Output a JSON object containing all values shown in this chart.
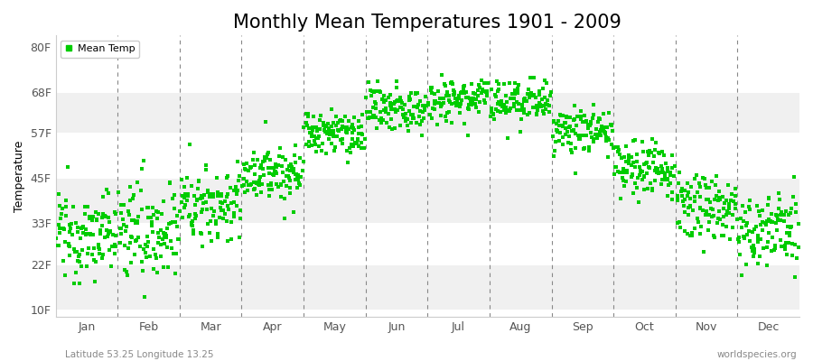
{
  "title": "Monthly Mean Temperatures 1901 - 2009",
  "ylabel": "Temperature",
  "xlabel_labels": [
    "Jan",
    "Feb",
    "Mar",
    "Apr",
    "May",
    "Jun",
    "Jul",
    "Aug",
    "Sep",
    "Oct",
    "Nov",
    "Dec"
  ],
  "ytick_labels": [
    "10F",
    "22F",
    "33F",
    "45F",
    "57F",
    "68F",
    "80F"
  ],
  "ytick_values": [
    10,
    22,
    33,
    45,
    57,
    68,
    80
  ],
  "ylim": [
    8,
    83
  ],
  "dot_color": "#00cc00",
  "dot_size": 5,
  "background_color": "#ffffff",
  "stripe_colors": [
    "#f0f0f0",
    "#ffffff"
  ],
  "grid_color": "#888888",
  "title_fontsize": 15,
  "legend_label": "Mean Temp",
  "footer_left": "Latitude 53.25 Longitude 13.25",
  "footer_right": "worldspecies.org",
  "n_years": 109,
  "month_mean_temps_F": [
    30.0,
    31.0,
    38.0,
    46.5,
    57.0,
    63.5,
    66.5,
    65.0,
    57.5,
    47.5,
    37.5,
    31.0
  ],
  "month_std_temps_F": [
    5.5,
    6.5,
    5.0,
    3.5,
    3.0,
    3.0,
    3.0,
    3.0,
    3.0,
    3.5,
    4.0,
    5.0
  ]
}
